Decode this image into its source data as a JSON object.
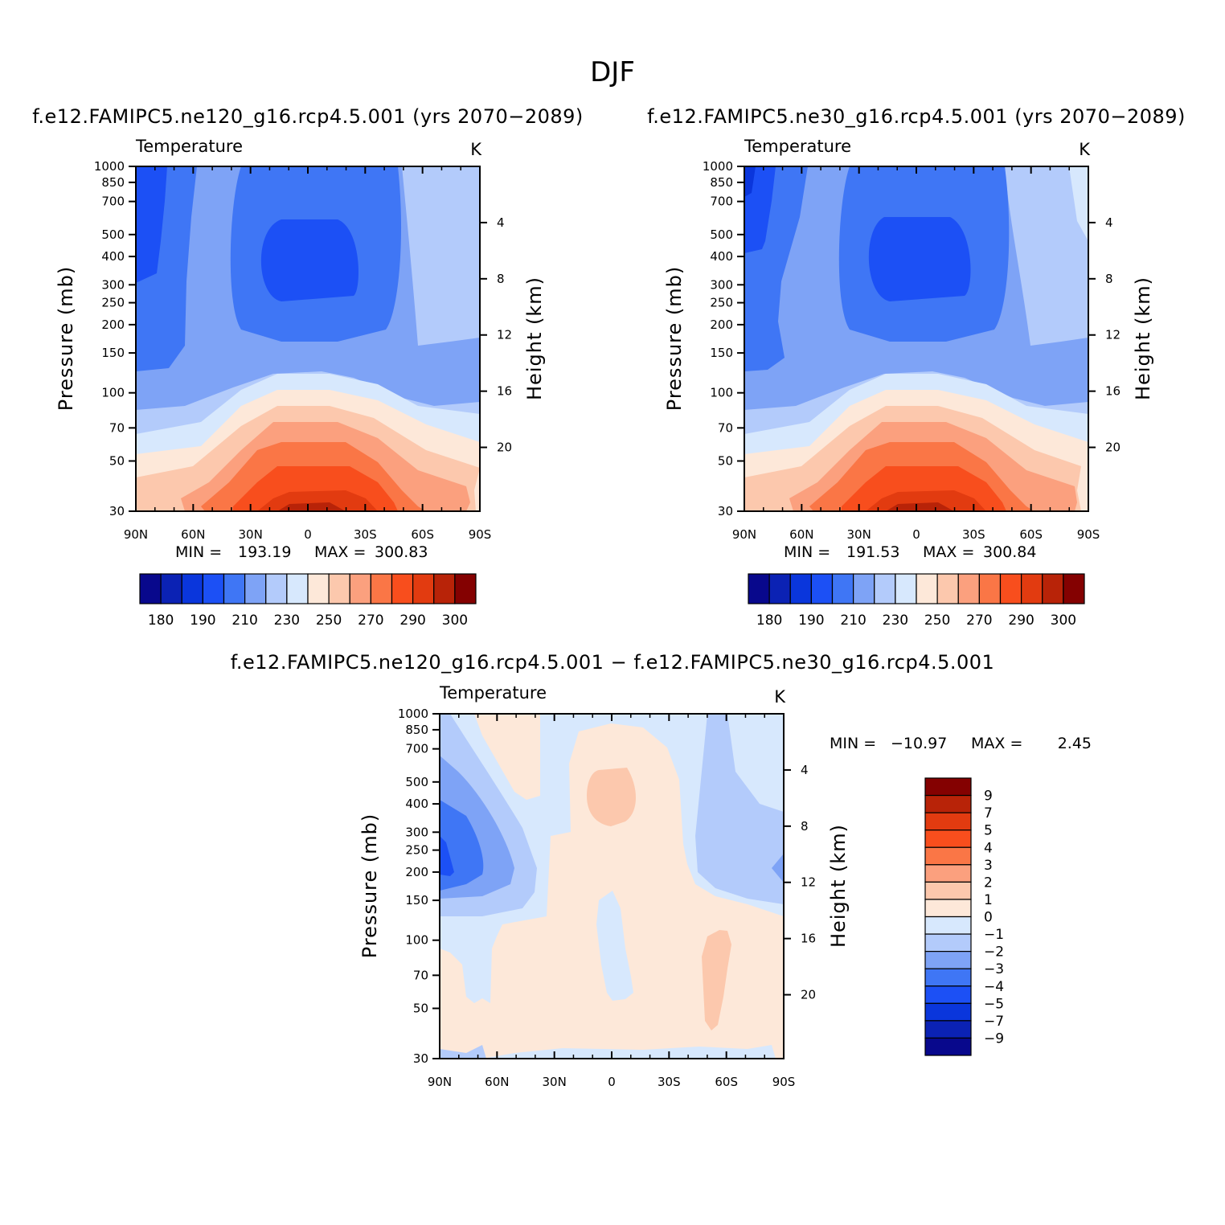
{
  "main_title": "DJF",
  "chart_data": [
    {
      "type": "heatmap",
      "title": "f.e12.FAMIPC5.ne120_g16.rcp4.5.001 (yrs 2070−2089)",
      "variable": "Temperature",
      "units": "K",
      "xlabel": "",
      "ylabel": "Pressure (mb)",
      "y2label": "Height (km)",
      "x_ticks": [
        "90N",
        "60N",
        "30N",
        "0",
        "30S",
        "60S",
        "90S"
      ],
      "y_ticks": [
        "30",
        "50",
        "70",
        "100",
        "150",
        "200",
        "250",
        "300",
        "400",
        "500",
        "700",
        "850",
        "1000"
      ],
      "y2_ticks": [
        "20",
        "16",
        "12",
        "8",
        "4"
      ],
      "ylim": [
        1000,
        30
      ],
      "y_scale": "log",
      "stats": {
        "min_label": "MIN =",
        "min": "193.19",
        "max_label": "MAX =",
        "max": "300.83"
      },
      "colorbar": {
        "orientation": "horizontal",
        "labels": [
          "180",
          "190",
          "210",
          "230",
          "250",
          "270",
          "290",
          "300"
        ],
        "colors": [
          "#08088c",
          "#0b22b4",
          "#0a36dc",
          "#1c50f5",
          "#3f76f5",
          "#7ea3f6",
          "#b3cbfb",
          "#d7e8fd",
          "#fde8d9",
          "#fcc8ad",
          "#fba07e",
          "#fa7646",
          "#f84e1d",
          "#e23b10",
          "#b82308",
          "#840101"
        ]
      }
    },
    {
      "type": "heatmap",
      "title": "f.e12.FAMIPC5.ne30_g16.rcp4.5.001 (yrs 2070−2089)",
      "variable": "Temperature",
      "units": "K",
      "xlabel": "",
      "ylabel": "Pressure (mb)",
      "y2label": "Height (km)",
      "x_ticks": [
        "90N",
        "60N",
        "30N",
        "0",
        "30S",
        "60S",
        "90S"
      ],
      "y_ticks": [
        "30",
        "50",
        "70",
        "100",
        "150",
        "200",
        "250",
        "300",
        "400",
        "500",
        "700",
        "850",
        "1000"
      ],
      "y2_ticks": [
        "20",
        "16",
        "12",
        "8",
        "4"
      ],
      "ylim": [
        1000,
        30
      ],
      "y_scale": "log",
      "stats": {
        "min_label": "MIN =",
        "min": "191.53",
        "max_label": "MAX =",
        "max": "300.84"
      },
      "colorbar": {
        "orientation": "horizontal",
        "labels": [
          "180",
          "190",
          "210",
          "230",
          "250",
          "270",
          "290",
          "300"
        ],
        "colors": [
          "#08088c",
          "#0b22b4",
          "#0a36dc",
          "#1c50f5",
          "#3f76f5",
          "#7ea3f6",
          "#b3cbfb",
          "#d7e8fd",
          "#fde8d9",
          "#fcc8ad",
          "#fba07e",
          "#fa7646",
          "#f84e1d",
          "#e23b10",
          "#b82308",
          "#840101"
        ]
      }
    },
    {
      "type": "heatmap",
      "title": "f.e12.FAMIPC5.ne120_g16.rcp4.5.001 − f.e12.FAMIPC5.ne30_g16.rcp4.5.001",
      "variable": "Temperature",
      "units": "K",
      "xlabel": "",
      "ylabel": "Pressure (mb)",
      "y2label": "Height (km)",
      "x_ticks": [
        "90N",
        "60N",
        "30N",
        "0",
        "30S",
        "60S",
        "90S"
      ],
      "y_ticks": [
        "30",
        "50",
        "70",
        "100",
        "150",
        "200",
        "250",
        "300",
        "400",
        "500",
        "700",
        "850",
        "1000"
      ],
      "y2_ticks": [
        "20",
        "16",
        "12",
        "8",
        "4"
      ],
      "ylim": [
        1000,
        30
      ],
      "y_scale": "log",
      "stats": {
        "min_label": "MIN =",
        "min": "−10.97",
        "max_label": "MAX =",
        "max": "2.45"
      },
      "colorbar": {
        "orientation": "vertical",
        "labels": [
          "9",
          "7",
          "5",
          "4",
          "3",
          "2",
          "1",
          "0",
          "−1",
          "−2",
          "−3",
          "−4",
          "−5",
          "−7",
          "−9"
        ],
        "colors": [
          "#840101",
          "#b82308",
          "#e23b10",
          "#f84e1d",
          "#fa7646",
          "#fba07e",
          "#fcc8ad",
          "#fde8d9",
          "#d7e8fd",
          "#b3cbfb",
          "#7ea3f6",
          "#3f76f5",
          "#1c50f5",
          "#0a36dc",
          "#0b22b4",
          "#08088c"
        ]
      }
    }
  ]
}
